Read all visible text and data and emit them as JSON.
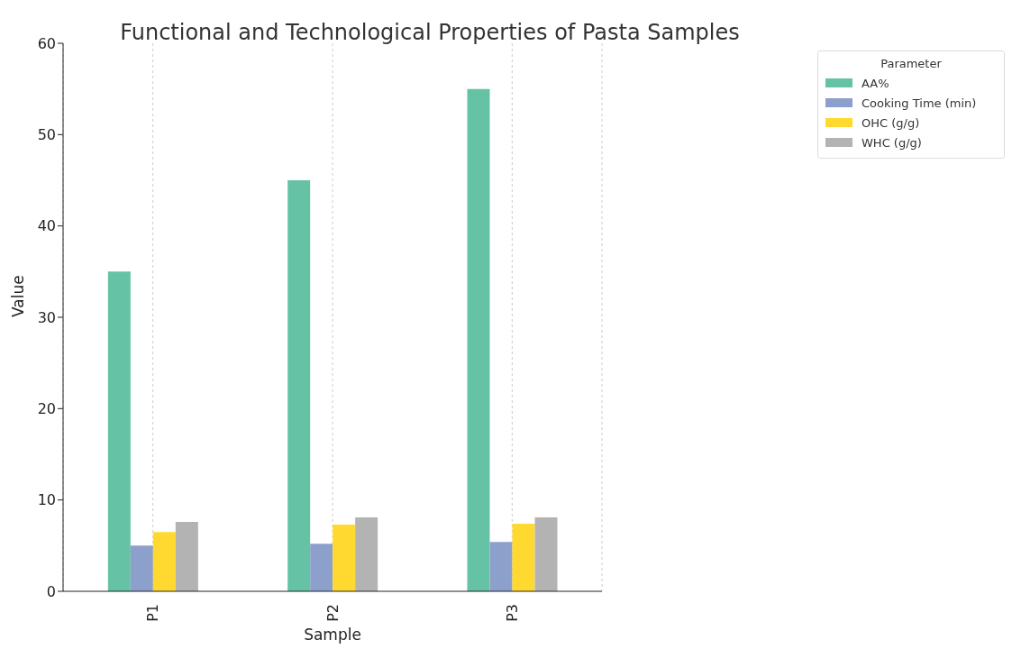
{
  "chart_data": {
    "type": "bar",
    "title": "Functional and Technological Properties of Pasta Samples",
    "xlabel": "Sample",
    "ylabel": "Value",
    "legend_title": "Parameter",
    "categories": [
      "P1",
      "P2",
      "P3"
    ],
    "series": [
      {
        "name": "AA%",
        "color": "#66c2a5",
        "values": [
          35,
          45,
          55
        ]
      },
      {
        "name": "Cooking Time (min)",
        "color": "#8da0cb",
        "values": [
          5.0,
          5.2,
          5.4
        ]
      },
      {
        "name": "OHC (g/g)",
        "color": "#ffd92f",
        "values": [
          6.5,
          7.3,
          7.4
        ]
      },
      {
        "name": "WHC (g/g)",
        "color": "#b3b3b3",
        "values": [
          7.6,
          8.1,
          8.1
        ]
      }
    ],
    "ylim": [
      0,
      60
    ],
    "yticks": [
      0,
      10,
      20,
      30,
      40,
      50,
      60
    ],
    "grid": "x",
    "legend": "top right"
  }
}
